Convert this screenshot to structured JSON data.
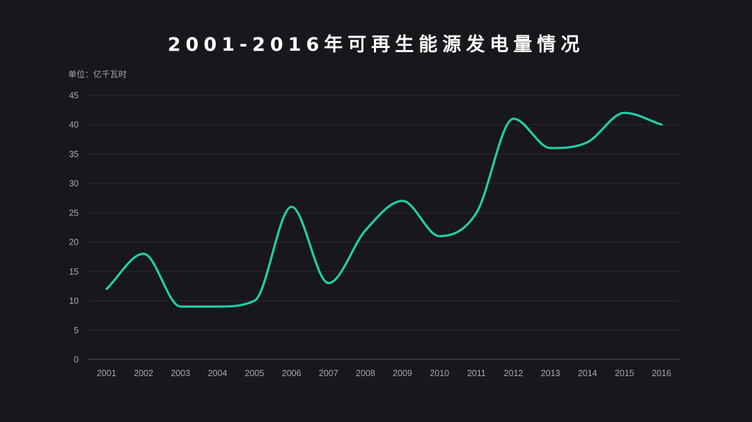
{
  "chart_data": {
    "type": "line",
    "title": "2001-2016年可再生能源发电量情况",
    "unit_label": "单位：亿千瓦时",
    "x": [
      "2001",
      "2002",
      "2003",
      "2004",
      "2005",
      "2006",
      "2007",
      "2008",
      "2009",
      "2010",
      "2011",
      "2012",
      "2013",
      "2014",
      "2015",
      "2016"
    ],
    "series": [
      {
        "values": [
          12,
          18,
          9,
          9,
          10,
          26,
          13,
          22,
          27,
          21,
          25,
          41,
          36,
          37,
          42,
          40
        ],
        "color": "#21cfa6"
      }
    ],
    "ylim": [
      0,
      45
    ],
    "yticks": [
      0,
      5,
      10,
      15,
      20,
      25,
      30,
      35,
      40,
      45
    ],
    "grid": true,
    "smooth": true,
    "colors": {
      "background": "#17171c",
      "grid": "#2a2a31",
      "axis": "#4a4a52",
      "tick_text": "#a9a9af",
      "title": "#ffffff"
    }
  }
}
